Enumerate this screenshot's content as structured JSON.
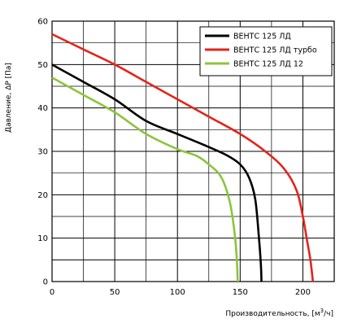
{
  "chart_data": {
    "type": "line",
    "title": "",
    "xlabel": "Производительность, [м",
    "xlabel_sup": "3",
    "xlabel_tail": "/ч]",
    "ylabel": "Давление, ΔP [Па]",
    "xlim": [
      0,
      225
    ],
    "ylim": [
      0,
      60
    ],
    "x_ticks": [
      0,
      50,
      100,
      150,
      200
    ],
    "y_ticks": [
      0,
      10,
      20,
      30,
      40,
      50,
      60
    ],
    "x_tick_labels": [
      "0",
      "50",
      "100",
      "150",
      "200"
    ],
    "y_tick_labels": [
      "0",
      "10",
      "20",
      "30",
      "40",
      "50",
      "60"
    ],
    "grid": true,
    "legend_position": "top-right",
    "series": [
      {
        "name": "ВЕНТС 125 ЛД",
        "color": "#000000",
        "points": [
          [
            0,
            50
          ],
          [
            25,
            46
          ],
          [
            50,
            42
          ],
          [
            75,
            37
          ],
          [
            100,
            34
          ],
          [
            125,
            31
          ],
          [
            140,
            29
          ],
          [
            150,
            27
          ],
          [
            157,
            24
          ],
          [
            162,
            19
          ],
          [
            165,
            10
          ],
          [
            166.5,
            4
          ],
          [
            167,
            0
          ]
        ]
      },
      {
        "name": "ВЕНТС 125 ЛД турбо",
        "color": "#e3241b",
        "points": [
          [
            0,
            57
          ],
          [
            25,
            53.5
          ],
          [
            50,
            50
          ],
          [
            75,
            46
          ],
          [
            100,
            42
          ],
          [
            125,
            38
          ],
          [
            150,
            34
          ],
          [
            170,
            30
          ],
          [
            185,
            26
          ],
          [
            195,
            21
          ],
          [
            200,
            15
          ],
          [
            203,
            10
          ],
          [
            206,
            5
          ],
          [
            208,
            0
          ]
        ]
      },
      {
        "name": "ВЕНТС 125 ЛД  12",
        "color": "#8cc43e",
        "points": [
          [
            0,
            47
          ],
          [
            25,
            43
          ],
          [
            50,
            39
          ],
          [
            75,
            34
          ],
          [
            100,
            30.5
          ],
          [
            115,
            29
          ],
          [
            125,
            27
          ],
          [
            135,
            24
          ],
          [
            142,
            18
          ],
          [
            146,
            10
          ],
          [
            147.5,
            4
          ],
          [
            148,
            0
          ]
        ]
      }
    ]
  }
}
